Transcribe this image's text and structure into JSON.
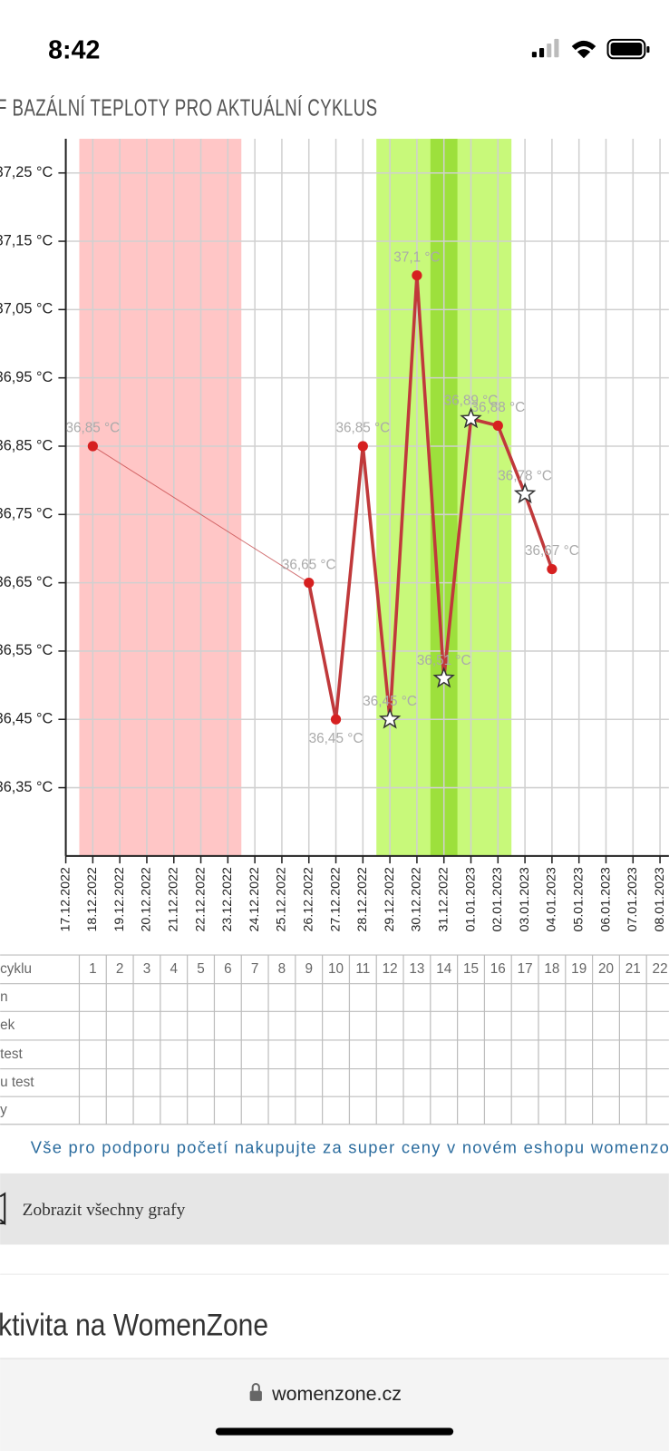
{
  "status_bar": {
    "time": "8:42"
  },
  "chart_data": {
    "type": "line",
    "title": "F BAZÁLNÍ TEPLOTY PRO AKTUÁLNÍ CYKLUS",
    "categories": [
      "17.12.2022",
      "18.12.2022",
      "19.12.2022",
      "20.12.2022",
      "21.12.2022",
      "22.12.2022",
      "23.12.2022",
      "24.12.2022",
      "25.12.2022",
      "26.12.2022",
      "27.12.2022",
      "28.12.2022",
      "29.12.2022",
      "30.12.2022",
      "31.12.2022",
      "01.01.2023",
      "02.01.2023",
      "03.01.2023",
      "04.01.2023",
      "05.01.2023",
      "06.01.2023",
      "07.01.2023",
      "08.01.2023"
    ],
    "values": [
      null,
      36.85,
      null,
      null,
      null,
      null,
      null,
      null,
      null,
      36.65,
      36.45,
      36.85,
      36.45,
      37.1,
      36.51,
      36.89,
      36.88,
      36.78,
      36.67,
      null,
      null,
      null,
      null
    ],
    "value_labels": [
      null,
      "36,85 °C",
      null,
      null,
      null,
      null,
      null,
      null,
      null,
      "36,65 °C",
      "36,45 °C",
      "36,85 °C",
      "36,45 °C",
      "37,1 °C",
      "36,51 °C",
      "36,89 °C",
      "36,88 °C",
      "36,78 °C",
      "36,67 °C",
      null,
      null,
      null,
      null
    ],
    "markers": [
      null,
      "circle",
      null,
      null,
      null,
      null,
      null,
      null,
      null,
      "circle",
      "circle",
      "circle",
      "star",
      "circle",
      "star",
      "star",
      "circle",
      "star",
      "circle",
      null,
      null,
      null,
      null
    ],
    "color": "#c0393b",
    "point_color": "#d62020",
    "ylim": [
      36.25,
      37.3
    ],
    "yticks": [
      {
        "value": 36.35,
        "label": "36,35 °C"
      },
      {
        "value": 36.45,
        "label": "36,45 °C"
      },
      {
        "value": 36.55,
        "label": "36,55 °C"
      },
      {
        "value": 36.65,
        "label": "36,65 °C"
      },
      {
        "value": 36.75,
        "label": "36,75 °C"
      },
      {
        "value": 36.85,
        "label": "36,85 °C"
      },
      {
        "value": 36.95,
        "label": "36,95 °C"
      },
      {
        "value": 37.05,
        "label": "37,05 °C"
      },
      {
        "value": 37.15,
        "label": "37,15 °C"
      },
      {
        "value": 37.25,
        "label": "37,25 °C"
      }
    ],
    "grid": true,
    "bands": [
      {
        "from": "18.12.2022",
        "to": "23.12.2022",
        "color": "#ffc6c6"
      },
      {
        "from": "29.12.2022",
        "to": "02.01.2023",
        "color": "#c8f97a"
      },
      {
        "from": "31.12.2022",
        "to": "31.12.2022",
        "color": "#9de03c"
      }
    ]
  },
  "table": {
    "header": [
      "cyklu",
      "1",
      "2",
      "3",
      "4",
      "5",
      "6",
      "7",
      "8",
      "9",
      "10",
      "11",
      "12",
      "13",
      "14",
      "15",
      "16",
      "17",
      "18",
      "19",
      "20",
      "21",
      "22"
    ],
    "row_labels": [
      "n",
      "ek",
      "test",
      "u test",
      "y"
    ]
  },
  "link": "Vše pro podporu početí nakupujte za super ceny v novém eshopu womenzo",
  "button": "Zobrazit všechny grafy",
  "heading": "ktivita na WomenZone",
  "url": "womenzone.cz"
}
